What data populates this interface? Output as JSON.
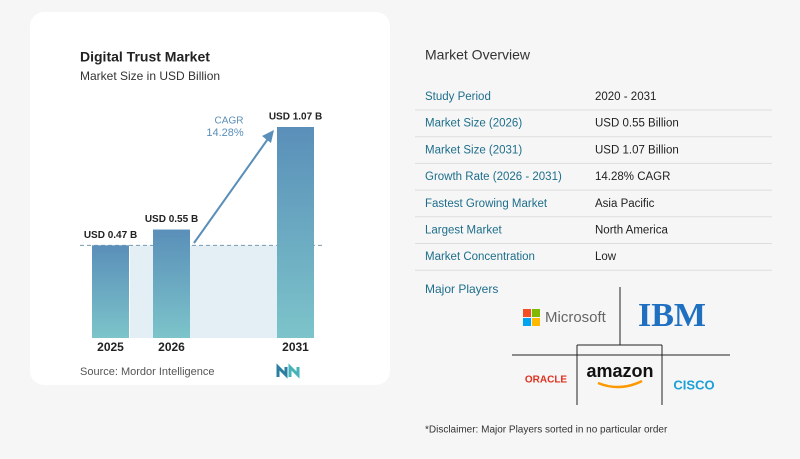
{
  "chart_data": {
    "type": "bar",
    "title": "Digital Trust Market",
    "subtitle": "Market Size in USD Billion",
    "categories": [
      "2025",
      "2026",
      "2031"
    ],
    "values": [
      0.47,
      0.55,
      1.07
    ],
    "value_labels": [
      "USD 0.47 B",
      "USD 0.55 B",
      "USD 1.07 B"
    ],
    "annotation": {
      "label": "CAGR",
      "value": "14.28%"
    },
    "source": "Source:  Mordor Intelligence"
  },
  "overview": {
    "title": "Market Overview",
    "rows": [
      [
        "Study Period",
        "2020 - 2031"
      ],
      [
        "Market Size (2026)",
        "USD 0.55 Billion"
      ],
      [
        "Market Size (2031)",
        "USD 1.07 Billion"
      ],
      [
        "Growth Rate (2026 - 2031)",
        "14.28% CAGR"
      ],
      [
        "Fastest Growing Market",
        "Asia Pacific"
      ],
      [
        "Largest Market",
        "North America"
      ],
      [
        "Market Concentration",
        "Low"
      ]
    ]
  },
  "players": {
    "title": "Major Players",
    "names": [
      "Microsoft",
      "IBM",
      "ORACLE",
      "amazon",
      "CISCO"
    ],
    "disclaimer": "*Disclaimer: Major Players sorted in no particular order"
  }
}
